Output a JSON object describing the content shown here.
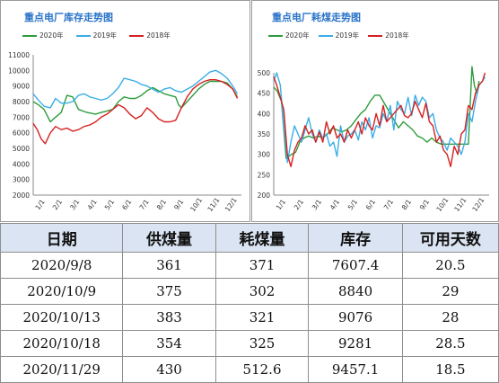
{
  "chart_data": [
    {
      "type": "line",
      "title": "重点电厂库存走势图",
      "x_tick_labels": [
        "1/1",
        "2/1",
        "3/1",
        "4/1",
        "5/1",
        "6/1",
        "7/1",
        "8/1",
        "9/1",
        "10/1",
        "11/1",
        "12/1"
      ],
      "ylim": [
        2000,
        11000
      ],
      "y_ticks": [
        2000,
        3000,
        4000,
        5000,
        6000,
        7000,
        8000,
        9000,
        10000,
        11000
      ],
      "legend_position": "top",
      "grid": false,
      "series": [
        {
          "name": "2020年",
          "color": "#2e9c3f",
          "x": [
            1,
            10,
            20,
            31,
            40,
            50,
            60,
            70,
            80,
            95,
            110,
            120,
            130,
            140,
            150,
            160,
            170,
            180,
            190,
            200,
            210,
            220,
            230,
            240,
            250,
            255,
            260,
            270,
            280,
            290,
            300,
            310,
            320,
            330,
            340,
            345,
            350,
            358
          ],
          "values": [
            8000,
            7800,
            7500,
            6700,
            7000,
            7300,
            8400,
            8300,
            7500,
            7300,
            7200,
            7300,
            7400,
            7500,
            8000,
            8300,
            8200,
            8200,
            8400,
            8700,
            8900,
            8700,
            8500,
            8400,
            8300,
            7800,
            7600,
            8000,
            8400,
            8800,
            9100,
            9300,
            9300,
            9300,
            9200,
            9000,
            8800,
            8300
          ]
        },
        {
          "name": "2019年",
          "color": "#3aaee6",
          "x": [
            1,
            10,
            20,
            31,
            40,
            50,
            60,
            70,
            80,
            90,
            100,
            110,
            120,
            130,
            140,
            150,
            160,
            170,
            180,
            190,
            200,
            210,
            220,
            230,
            240,
            250,
            260,
            270,
            280,
            290,
            300,
            310,
            320,
            330,
            340,
            350,
            358
          ],
          "values": [
            8500,
            8100,
            7700,
            7600,
            8200,
            7900,
            7900,
            8000,
            8400,
            8500,
            8300,
            8200,
            8100,
            8200,
            8500,
            8900,
            9500,
            9400,
            9300,
            9100,
            9000,
            8800,
            8600,
            8800,
            8900,
            8700,
            8600,
            8800,
            9000,
            9300,
            9600,
            9900,
            10000,
            9800,
            9500,
            9000,
            8500
          ]
        },
        {
          "name": "2018年",
          "color": "#d62020",
          "x": [
            1,
            8,
            15,
            22,
            31,
            40,
            50,
            60,
            70,
            80,
            90,
            100,
            110,
            120,
            130,
            140,
            150,
            160,
            170,
            180,
            190,
            200,
            210,
            220,
            230,
            240,
            250,
            260,
            270,
            280,
            290,
            300,
            310,
            320,
            330,
            340,
            350,
            358
          ],
          "values": [
            6600,
            6200,
            5600,
            5300,
            6000,
            6400,
            6200,
            6300,
            6100,
            6200,
            6400,
            6500,
            6700,
            7000,
            7200,
            7500,
            7800,
            7600,
            7200,
            6900,
            7100,
            7600,
            7300,
            6900,
            6700,
            6700,
            6800,
            7600,
            8300,
            8800,
            9100,
            9300,
            9400,
            9400,
            9300,
            9100,
            8800,
            8200
          ]
        }
      ]
    },
    {
      "type": "line",
      "title": "重点电厂耗煤走势图",
      "x_tick_labels": [
        "1/1",
        "2/1",
        "3/1",
        "4/1",
        "5/1",
        "6/1",
        "7/1",
        "8/1",
        "9/1",
        "10/1",
        "11/1",
        "12/1"
      ],
      "ylim": [
        200,
        500
      ],
      "y_ticks": [
        200,
        250,
        300,
        350,
        400,
        450,
        500
      ],
      "legend_position": "top",
      "grid": false,
      "series": [
        {
          "name": "2020年",
          "color": "#2e9c3f",
          "x": [
            1,
            7,
            14,
            22,
            31,
            38,
            45,
            52,
            60,
            68,
            76,
            84,
            92,
            100,
            108,
            116,
            124,
            132,
            140,
            148,
            156,
            164,
            172,
            180,
            188,
            196,
            204,
            212,
            220,
            228,
            236,
            244,
            252,
            260,
            268,
            276,
            284,
            292,
            300,
            310,
            320,
            330,
            336,
            340,
            344,
            348
          ],
          "values": [
            465,
            455,
            430,
            290,
            300,
            305,
            330,
            340,
            345,
            340,
            345,
            340,
            350,
            365,
            360,
            355,
            360,
            370,
            385,
            400,
            410,
            430,
            445,
            445,
            425,
            405,
            385,
            365,
            380,
            370,
            360,
            345,
            340,
            330,
            340,
            330,
            325,
            325,
            325,
            325,
            325,
            325,
            515,
            470,
            450,
            480
          ]
        },
        {
          "name": "2019年",
          "color": "#3aaee6",
          "x": [
            1,
            6,
            12,
            18,
            24,
            30,
            36,
            42,
            48,
            54,
            60,
            66,
            72,
            78,
            84,
            90,
            96,
            102,
            108,
            114,
            120,
            126,
            132,
            138,
            144,
            150,
            156,
            162,
            168,
            174,
            180,
            186,
            192,
            198,
            204,
            210,
            216,
            222,
            228,
            234,
            240,
            246,
            252,
            258,
            264,
            270,
            276,
            282,
            288,
            294,
            300,
            306,
            312,
            318,
            324,
            330,
            336,
            342,
            348,
            354,
            358
          ],
          "values": [
            480,
            500,
            470,
            370,
            280,
            330,
            370,
            350,
            330,
            360,
            390,
            350,
            330,
            360,
            340,
            350,
            320,
            330,
            295,
            370,
            330,
            345,
            350,
            360,
            335,
            380,
            360,
            390,
            340,
            370,
            365,
            400,
            380,
            420,
            360,
            430,
            410,
            400,
            440,
            395,
            445,
            420,
            440,
            430,
            390,
            400,
            360,
            340,
            330,
            310,
            340,
            330,
            320,
            300,
            330,
            400,
            380,
            430,
            470,
            480,
            490
          ]
        },
        {
          "name": "2018年",
          "color": "#d62020",
          "x": [
            1,
            6,
            12,
            18,
            24,
            30,
            36,
            42,
            48,
            54,
            60,
            66,
            72,
            78,
            84,
            90,
            96,
            102,
            108,
            114,
            120,
            126,
            132,
            138,
            144,
            150,
            156,
            162,
            168,
            174,
            180,
            186,
            192,
            198,
            204,
            210,
            216,
            222,
            228,
            234,
            240,
            246,
            252,
            258,
            264,
            270,
            276,
            282,
            288,
            294,
            300,
            306,
            312,
            318,
            324,
            330,
            336,
            342,
            348,
            354,
            358
          ],
          "values": [
            490,
            470,
            440,
            410,
            300,
            270,
            310,
            330,
            340,
            370,
            350,
            360,
            330,
            355,
            330,
            380,
            350,
            370,
            340,
            350,
            330,
            360,
            340,
            360,
            380,
            350,
            390,
            370,
            360,
            400,
            370,
            420,
            380,
            390,
            400,
            410,
            420,
            395,
            390,
            400,
            430,
            410,
            390,
            425,
            380,
            370,
            330,
            345,
            310,
            300,
            270,
            320,
            300,
            350,
            360,
            420,
            410,
            450,
            470,
            480,
            500
          ]
        }
      ]
    }
  ],
  "table": {
    "headers": [
      "日期",
      "供煤量",
      "耗煤量",
      "库存",
      "可用天数"
    ],
    "rows": [
      [
        "2020/9/8",
        "361",
        "371",
        "7607.4",
        "20.5"
      ],
      [
        "2020/10/9",
        "375",
        "302",
        "8840",
        "29"
      ],
      [
        "2020/10/13",
        "383",
        "321",
        "9076",
        "28"
      ],
      [
        "2020/10/18",
        "354",
        "325",
        "9281",
        "28.5"
      ],
      [
        "2020/11/29",
        "430",
        "512.6",
        "9457.1",
        "18.5"
      ]
    ]
  }
}
